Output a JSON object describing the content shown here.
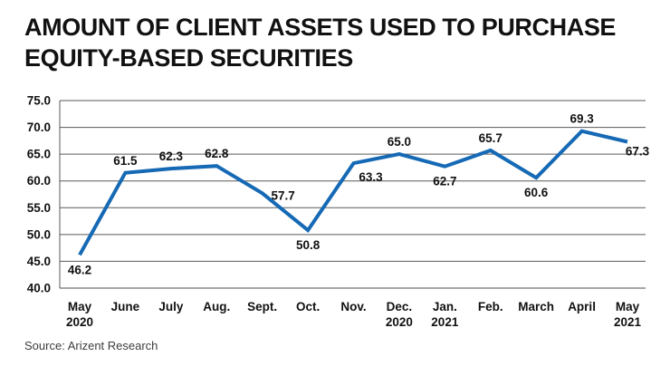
{
  "header": {
    "title_line1": "AMOUNT OF CLIENT ASSETS USED TO PURCHASE",
    "title_line2": "EQUITY-BASED SECURITIES"
  },
  "footer": {
    "source": "Source: Arizent Research"
  },
  "chart_data": {
    "type": "line",
    "title": "AMOUNT OF CLIENT ASSETS USED TO PURCHASE EQUITY-BASED SECURITIES",
    "categories": [
      "May 2020",
      "June",
      "July",
      "Aug.",
      "Sept.",
      "Oct.",
      "Nov.",
      "Dec. 2020",
      "Jan. 2021",
      "Feb.",
      "March",
      "April",
      "May 2021"
    ],
    "x_tick_lines": [
      [
        "May",
        "2020"
      ],
      [
        "June"
      ],
      [
        "July"
      ],
      [
        "Aug."
      ],
      [
        "Sept."
      ],
      [
        "Oct."
      ],
      [
        "Nov."
      ],
      [
        "Dec.",
        "2020"
      ],
      [
        "Jan.",
        "2021"
      ],
      [
        "Feb."
      ],
      [
        "March"
      ],
      [
        "April"
      ],
      [
        "May",
        "2021"
      ]
    ],
    "values": [
      46.2,
      61.5,
      62.3,
      62.8,
      57.7,
      50.8,
      63.3,
      65.0,
      62.7,
      65.7,
      60.6,
      69.3,
      67.3
    ],
    "point_labels": [
      "46.2",
      "61.5",
      "62.3",
      "62.8",
      "57.7",
      "50.8",
      "63.3",
      "65.0",
      "62.7",
      "65.7",
      "60.6",
      "69.3",
      "67.3"
    ],
    "label_placements": [
      "below",
      "above",
      "above",
      "above",
      "right",
      "below",
      "below-right",
      "above",
      "below",
      "above",
      "below",
      "above",
      "end"
    ],
    "ylim": [
      40,
      75
    ],
    "y_tick_labels": [
      "75.0",
      "70.0",
      "65.0",
      "60.0",
      "55.0",
      "50.0",
      "45.0",
      "40.0"
    ],
    "grid": "horizontal",
    "legend": "none",
    "xlabel": "",
    "ylabel": "",
    "line_color": "#1569b5",
    "gridline_color": "#5a5a5a",
    "baseline_color": "#a6a6a6",
    "text_color": "#111111"
  }
}
